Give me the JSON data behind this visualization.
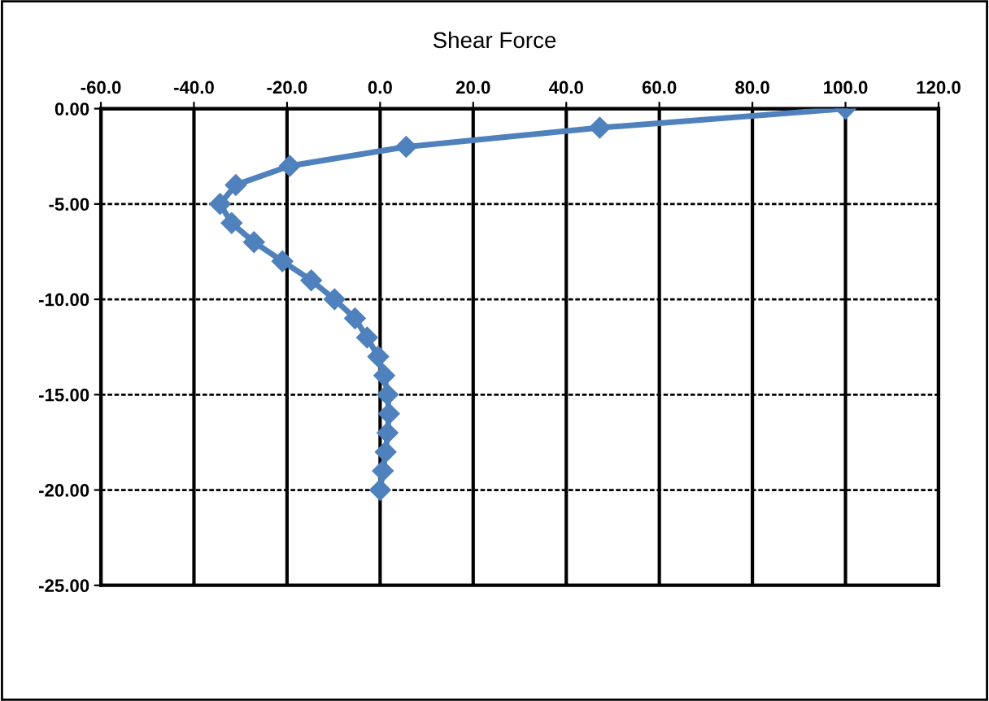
{
  "chart_data": {
    "type": "line",
    "title": "Shear Force",
    "series": [
      {
        "color": "#4f81bd",
        "x": [
          100,
          47.2,
          5.6,
          -19.4,
          -31,
          -34.4,
          -31.9,
          -27.1,
          -21,
          -14.8,
          -9.8,
          -5.4,
          -2.8,
          -0.4,
          0.9,
          1.6,
          1.9,
          1.6,
          1.2,
          0.6,
          0
        ],
        "values": [
          0,
          -1,
          -2,
          -3,
          -4,
          -5,
          -6,
          -7,
          -8,
          -9,
          -10,
          -11,
          -12,
          -13,
          -14,
          -15,
          -16,
          -17,
          -18,
          -19,
          -20
        ]
      }
    ],
    "xlim": [
      -60,
      120
    ],
    "xticks": [
      {
        "value": -60,
        "label": "-60.0"
      },
      {
        "value": -40,
        "label": "-40.0"
      },
      {
        "value": -20,
        "label": "-20.0"
      },
      {
        "value": 0,
        "label": "0.0"
      },
      {
        "value": 20,
        "label": "20.0"
      },
      {
        "value": 40,
        "label": "40.0"
      },
      {
        "value": 60,
        "label": "60.0"
      },
      {
        "value": 80,
        "label": "80.0"
      },
      {
        "value": 100,
        "label": "100.0"
      },
      {
        "value": 120,
        "label": "120.0"
      }
    ],
    "ylim": [
      -25,
      0
    ],
    "yticks": [
      {
        "value": 0,
        "label": "0.00"
      },
      {
        "value": -5,
        "label": "-5.00"
      },
      {
        "value": -10,
        "label": "-10.00"
      },
      {
        "value": -15,
        "label": "-15.00"
      },
      {
        "value": -20,
        "label": "-20.00"
      },
      {
        "value": -25,
        "label": "-25.00"
      }
    ],
    "grid": true,
    "marker": "diamond",
    "line_style": "solid",
    "legend": false
  }
}
